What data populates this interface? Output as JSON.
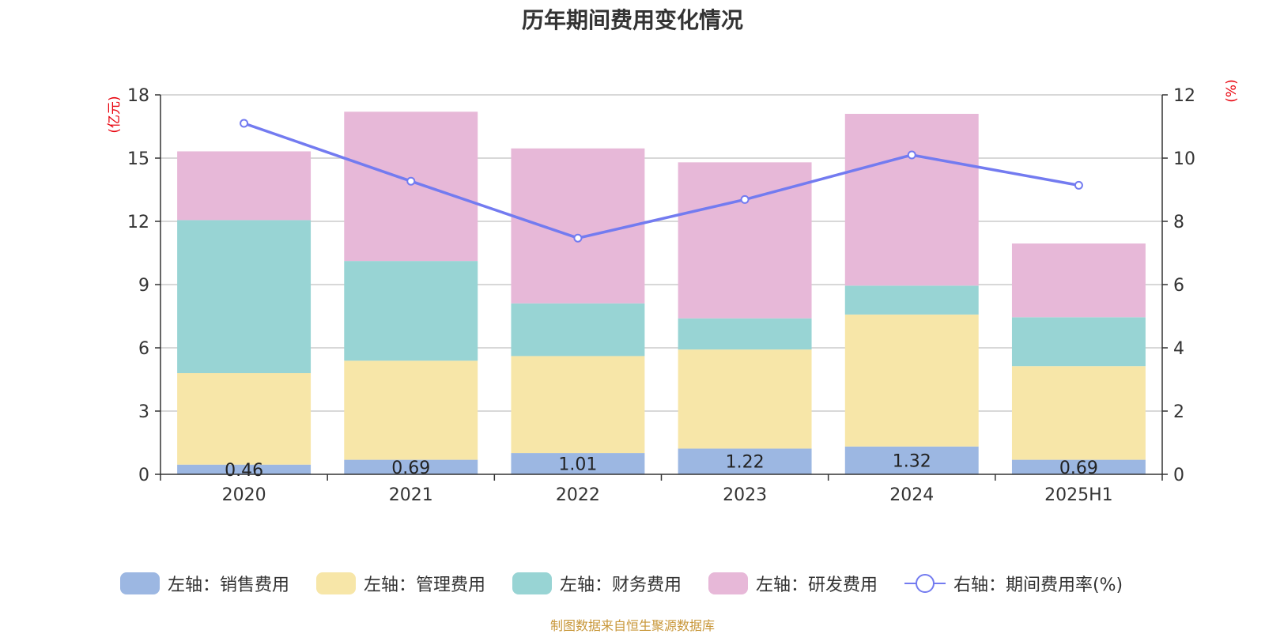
{
  "title": "历年期间费用变化情况",
  "source": "制图数据来自恒生聚源数据库",
  "colors": {
    "sales": "#9cb7e2",
    "admin": "#f7e6a8",
    "finance": "#98d4d4",
    "rd": "#e7b8d8",
    "rate": "#737bf0"
  },
  "chart_data": {
    "type": "bar",
    "stacked": true,
    "categories": [
      "2020",
      "2021",
      "2022",
      "2023",
      "2024",
      "2025H1"
    ],
    "left_axis": {
      "unit_label": "(亿元)",
      "ylim": [
        0,
        18
      ],
      "ticks": [
        0,
        3,
        6,
        9,
        12,
        15,
        18
      ]
    },
    "right_axis": {
      "unit_label": "(%)",
      "ylim": [
        0,
        12
      ],
      "ticks": [
        0,
        2,
        4,
        6,
        8,
        10,
        12
      ]
    },
    "grid": true,
    "legend_position": "bottom",
    "series": [
      {
        "name": "左轴：销售费用",
        "key": "sales",
        "type": "bar",
        "axis": "left",
        "values": [
          0.46,
          0.69,
          1.01,
          1.22,
          1.32,
          0.69
        ],
        "labels": [
          "0.46",
          "0.69",
          "1.01",
          "1.22",
          "1.32",
          "0.69"
        ]
      },
      {
        "name": "左轴：管理费用",
        "key": "admin",
        "type": "bar",
        "axis": "left",
        "values": [
          4.34,
          4.7,
          4.6,
          4.7,
          6.26,
          4.44
        ]
      },
      {
        "name": "左轴：财务费用",
        "key": "finance",
        "type": "bar",
        "axis": "left",
        "values": [
          7.26,
          4.73,
          2.5,
          1.48,
          1.37,
          2.32
        ]
      },
      {
        "name": "左轴：研发费用",
        "key": "rd",
        "type": "bar",
        "axis": "left",
        "values": [
          3.26,
          7.08,
          7.35,
          7.4,
          8.15,
          3.5
        ]
      },
      {
        "name": "右轴：期间费用率(%)",
        "key": "rate",
        "type": "line",
        "axis": "right",
        "values": [
          11.1,
          9.27,
          7.47,
          8.69,
          10.1,
          9.14
        ]
      }
    ]
  }
}
